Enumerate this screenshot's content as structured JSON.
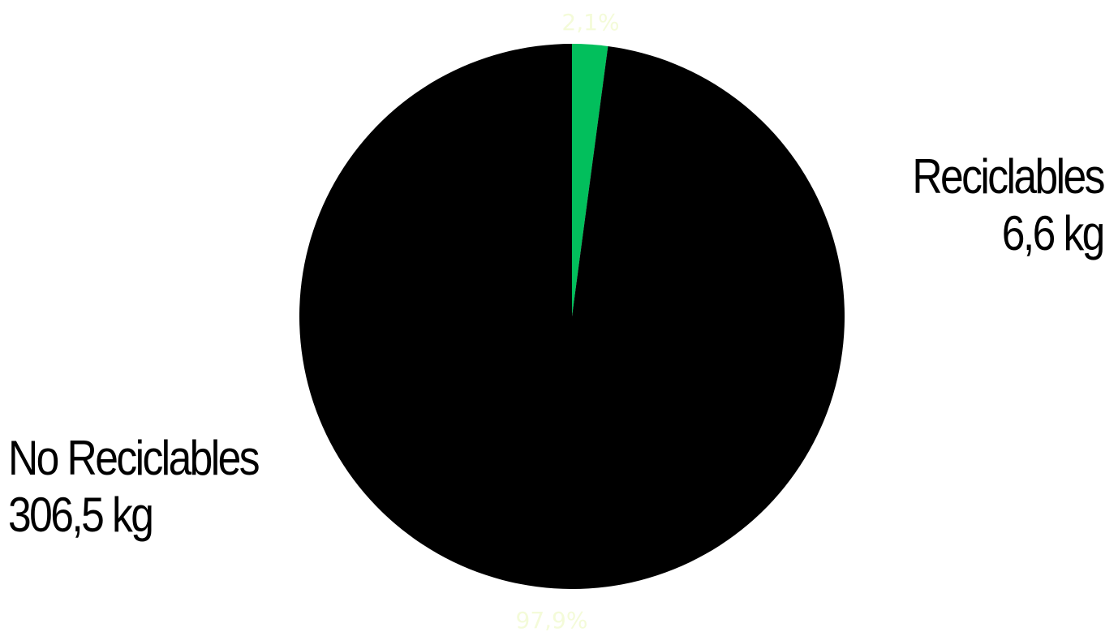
{
  "chart_data": {
    "type": "pie",
    "slices": [
      {
        "name": "Reciclables",
        "value": 6.6,
        "value_label": "6,6 kg",
        "percent_label": "2,1%",
        "color": "#02bf5c"
      },
      {
        "name": "No Reciclables",
        "value": 306.5,
        "value_label": "306,5 kg",
        "percent_label": "97,9%",
        "color": "#000000"
      }
    ],
    "start_angle": "top",
    "direction": "clockwise",
    "label_color": "#f4fbd9"
  }
}
